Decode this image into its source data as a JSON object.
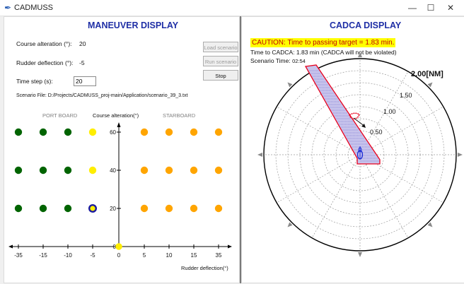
{
  "window": {
    "title": "CADMUSS",
    "minimize_glyph": "—",
    "maximize_glyph": "☐",
    "close_glyph": "✕"
  },
  "maneuver": {
    "title": "MANEUVER DISPLAY",
    "course_alteration_label": "Course alteration (°):",
    "course_alteration_value": "20",
    "rudder_deflection_label": "Rudder deflection (°):",
    "rudder_deflection_value": "-5",
    "time_step_label": "Time step (s):",
    "time_step_value": "20",
    "scenario_file_label": "Scenario File:",
    "scenario_file_path": "D:/Projects/CADMUSS_proj-main/Application/scenario_39_3.txt",
    "buttons": {
      "load": "Load scenario",
      "run": "Run scenario",
      "stop": "Stop"
    }
  },
  "grid": {
    "port_label": "PORT BOARD",
    "starboard_label": "STARBOARD",
    "y_axis_label": "Course alteration(°)",
    "x_axis_label": "Rudder deflection(°)",
    "x_ticks": [
      "-35",
      "-15",
      "-10",
      "-5",
      "0",
      "5",
      "10",
      "15",
      "35"
    ],
    "y_ticks": [
      "60",
      "40",
      "20",
      "0"
    ],
    "colors": {
      "port": "#006400",
      "neutral": "#ffee00",
      "starboard": "#ffa500",
      "selected_ring": "#1a1aa0"
    },
    "rows": [
      {
        "course": 60,
        "states": [
          "port",
          "port",
          "port",
          "neutral",
          "starboard",
          "starboard",
          "starboard",
          "starboard"
        ]
      },
      {
        "course": 40,
        "states": [
          "port",
          "port",
          "port",
          "neutral",
          "starboard",
          "starboard",
          "starboard",
          "starboard"
        ]
      },
      {
        "course": 20,
        "states": [
          "port",
          "port",
          "port",
          "selected",
          "starboard",
          "starboard",
          "starboard",
          "starboard"
        ]
      }
    ]
  },
  "cadca": {
    "title": "CADCA DISPLAY",
    "caution": "CAUTION: Time to passing target = 1.83 min.",
    "time_to_cadca_label": "Time to CADCA:",
    "time_to_cadca_value": "1.83 min (CADCA will not be violated)",
    "scenario_time_label": "Scenario Time:",
    "scenario_time_value": "02:54",
    "range_labels": [
      "0.50",
      "1.00",
      "1.50",
      "2.00[NM]"
    ],
    "colors": {
      "zone_fill": "#c7c3ec",
      "zone_edge": "#e8001c",
      "own_ship": "#1a2bd6"
    }
  }
}
